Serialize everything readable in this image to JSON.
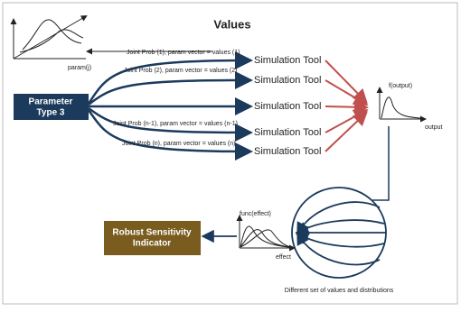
{
  "title": "Values",
  "input_plot": {
    "axis_label": "param(j)"
  },
  "source": {
    "lines": [
      "Parameter",
      "Type 3"
    ]
  },
  "links": [
    {
      "label": "Joint Prob (1), param vector = values (1)",
      "target": "Simulation Tool"
    },
    {
      "label": "Joint Prob (2), param vector = values (2)",
      "target": "Simulation Tool"
    },
    {
      "target": "Simulation Tool"
    },
    {
      "label": "Joint Prob (n-1), param vector = values (n-1)",
      "target": "Simulation Tool"
    },
    {
      "label": "Joint Prob (n), param vector = values (n)",
      "target": "Simulation Tool"
    }
  ],
  "output_plot": {
    "y_label": "f(output)",
    "x_label": "output"
  },
  "effect_plot": {
    "y_label": "func(effect)",
    "x_label": "effect"
  },
  "result": {
    "lines": [
      "Robust Sensitivity",
      "Indicator"
    ]
  },
  "caption": "Different set of values and distributions"
}
